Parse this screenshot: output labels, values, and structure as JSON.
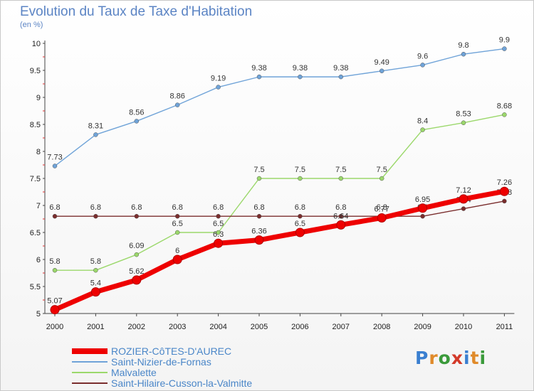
{
  "title": "Evolution du Taux de Taxe d'Habitation",
  "unit_label": "(en %)",
  "logo_text": "Proxiti",
  "chart_data": {
    "type": "line",
    "title": "Evolution du Taux de Taxe d'Habitation",
    "ylabel": "(en %)",
    "x": [
      "2000",
      "2001",
      "2002",
      "2003",
      "2004",
      "2005",
      "2006",
      "2007",
      "2008",
      "2009",
      "2010",
      "2011"
    ],
    "ylim": [
      5,
      10
    ],
    "yticks": [
      "5",
      "5.5",
      "6",
      "6.5",
      "7",
      "7.5",
      "8",
      "8.5",
      "9",
      "9.5",
      "10"
    ],
    "grid": false,
    "legend": "bottom",
    "series": [
      {
        "name": "Saint-Nizier-de-Fornas",
        "color": "#6fa3d8",
        "values": [
          7.73,
          8.31,
          8.56,
          8.86,
          9.19,
          9.38,
          9.38,
          9.38,
          9.49,
          9.6,
          9.8,
          9.9
        ],
        "labels": [
          "7.73",
          "8.31",
          "8.56",
          "8.86",
          "9.19",
          "9.38",
          "9.38",
          "9.38",
          "9.49",
          "9.6",
          "9.8",
          "9.9"
        ]
      },
      {
        "name": "Malvalette",
        "color": "#9bd86b",
        "values": [
          5.8,
          5.8,
          6.09,
          6.5,
          6.5,
          7.5,
          7.5,
          7.5,
          7.5,
          8.4,
          8.53,
          8.68
        ],
        "labels": [
          "5.8",
          "5.8",
          "6.09",
          "6.5",
          "6.5",
          "7.5",
          "7.5",
          "7.5",
          "7.5",
          "8.4",
          "8.53",
          "8.68"
        ]
      },
      {
        "name": "Saint-Hilaire-Cusson-la-Valmitte",
        "color": "#7a2d2d",
        "values": [
          6.8,
          6.8,
          6.8,
          6.8,
          6.8,
          6.8,
          6.8,
          6.8,
          6.8,
          6.8,
          6.94,
          7.08
        ],
        "labels": [
          "6.8",
          "6.8",
          "6.8",
          "6.8",
          "6.8",
          "6.8",
          "6.8",
          "6.8",
          "6.8",
          "6.8",
          "6.94",
          "7.08"
        ]
      },
      {
        "name": "ROZIER-CôTES-D'AUREC",
        "color": "#ee0000",
        "values": [
          5.07,
          5.4,
          5.62,
          6,
          6.3,
          6.36,
          6.5,
          6.64,
          6.77,
          6.95,
          7.12,
          7.26
        ],
        "labels": [
          "5.07",
          "5.4",
          "5.62",
          "6",
          "6.3",
          "6.36",
          "6.5",
          "6.64",
          "6.77",
          "6.95",
          "7.12",
          "7.26"
        ]
      }
    ],
    "legend_entries": [
      {
        "name": "ROZIER-CôTES-D'AUREC",
        "color": "#ee0000"
      },
      {
        "name": "Saint-Nizier-de-Fornas",
        "color": "#6fa3d8"
      },
      {
        "name": "Malvalette",
        "color": "#9bd86b"
      },
      {
        "name": "Saint-Hilaire-Cusson-la-Valmitte",
        "color": "#7a2d2d"
      }
    ]
  }
}
